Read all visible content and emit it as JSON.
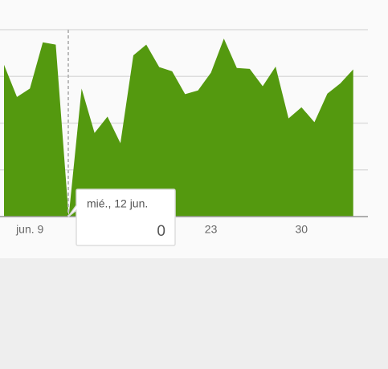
{
  "chart_data": {
    "type": "area",
    "color": "#54990f",
    "categories": [
      null,
      null,
      "jun. 9",
      null,
      null,
      null,
      null,
      null,
      null,
      null,
      null,
      null,
      null,
      null,
      null,
      null,
      "23",
      null,
      null,
      null,
      null,
      null,
      null,
      "30",
      null,
      null,
      null,
      null
    ],
    "values": [
      3.25,
      2.56,
      2.74,
      3.73,
      3.68,
      0,
      2.74,
      1.79,
      2.14,
      1.57,
      3.45,
      3.68,
      3.2,
      3.11,
      2.62,
      2.7,
      3.08,
      3.81,
      3.18,
      3.16,
      2.79,
      3.21,
      2.1,
      2.34,
      2.02,
      2.63,
      2.85,
      3.15
    ],
    "ylim": [
      0,
      4
    ],
    "yticks": [
      0,
      1,
      2,
      3,
      4
    ],
    "grid": true,
    "tooltip": {
      "label": "mié., 12 jun.",
      "value": 0
    }
  }
}
